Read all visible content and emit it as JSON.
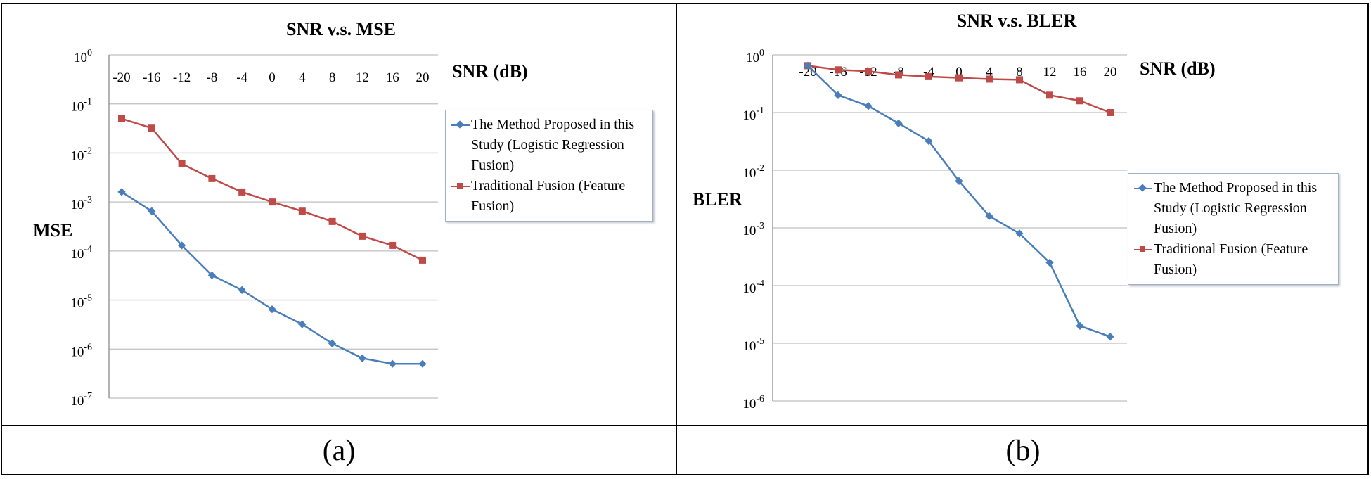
{
  "figure": {
    "captions": [
      "(a)",
      "(b)"
    ],
    "x_unit_label": "SNR (dB)"
  },
  "colors": {
    "proposed": "#4a7ebb",
    "traditional": "#be4b48",
    "grid": "#bfbfbf",
    "text": "#000000"
  },
  "chart_data": [
    {
      "type": "line",
      "title": "SNR v.s. MSE",
      "xlabel": "SNR (dB)",
      "ylabel": "MSE",
      "y_scale": "log",
      "ylim": [
        1e-07,
        1
      ],
      "y_ticks": [
        {
          "base": "10",
          "exp": "0"
        },
        {
          "base": "10",
          "exp": "-1"
        },
        {
          "base": "10",
          "exp": "-2"
        },
        {
          "base": "10",
          "exp": "-3"
        },
        {
          "base": "10",
          "exp": "-4"
        },
        {
          "base": "10",
          "exp": "-5"
        },
        {
          "base": "10",
          "exp": "-6"
        },
        {
          "base": "10",
          "exp": "-7"
        }
      ],
      "categories": [
        "-20",
        "-16",
        "-12",
        "-8",
        "-4",
        "0",
        "4",
        "8",
        "12",
        "16",
        "20"
      ],
      "grid": true,
      "x_axis_position": "top",
      "legend": "right",
      "series": [
        {
          "name": "The Method Proposed in this Study (Logistic Regression Fusion)",
          "marker": "diamond",
          "values": [
            0.0016,
            0.00065,
            0.00013,
            3.2e-05,
            1.6e-05,
            6.5e-06,
            3.2e-06,
            1.3e-06,
            6.5e-07,
            5e-07,
            5e-07
          ]
        },
        {
          "name": "Traditional Fusion (Feature Fusion)",
          "marker": "square",
          "values": [
            0.05,
            0.032,
            0.006,
            0.003,
            0.0016,
            0.001,
            0.00065,
            0.0004,
            0.0002,
            0.00013,
            6.5e-05
          ]
        }
      ]
    },
    {
      "type": "line",
      "title": "SNR v.s. BLER",
      "xlabel": "SNR (dB)",
      "ylabel": "BLER",
      "y_scale": "log",
      "ylim": [
        1e-06,
        1
      ],
      "y_ticks": [
        {
          "base": "10",
          "exp": "0"
        },
        {
          "base": "10",
          "exp": "-1"
        },
        {
          "base": "10",
          "exp": "-2"
        },
        {
          "base": "10",
          "exp": "-3"
        },
        {
          "base": "10",
          "exp": "-4"
        },
        {
          "base": "10",
          "exp": "-5"
        },
        {
          "base": "10",
          "exp": "-6"
        }
      ],
      "categories": [
        "-20",
        "-16",
        "-12",
        "-8",
        "-4",
        "0",
        "4",
        "8",
        "12",
        "16",
        "20"
      ],
      "grid": true,
      "x_axis_position": "top",
      "legend": "right",
      "series": [
        {
          "name": "The Method Proposed in this Study (Logistic Regression Fusion)",
          "marker": "diamond",
          "values": [
            0.65,
            0.2,
            0.13,
            0.065,
            0.032,
            0.0065,
            0.0016,
            0.0008,
            0.00025,
            2e-05,
            1.3e-05
          ]
        },
        {
          "name": "Traditional Fusion (Feature Fusion)",
          "marker": "square",
          "values": [
            0.65,
            0.55,
            0.52,
            0.45,
            0.42,
            0.4,
            0.38,
            0.37,
            0.2,
            0.16,
            0.1
          ]
        }
      ]
    }
  ]
}
